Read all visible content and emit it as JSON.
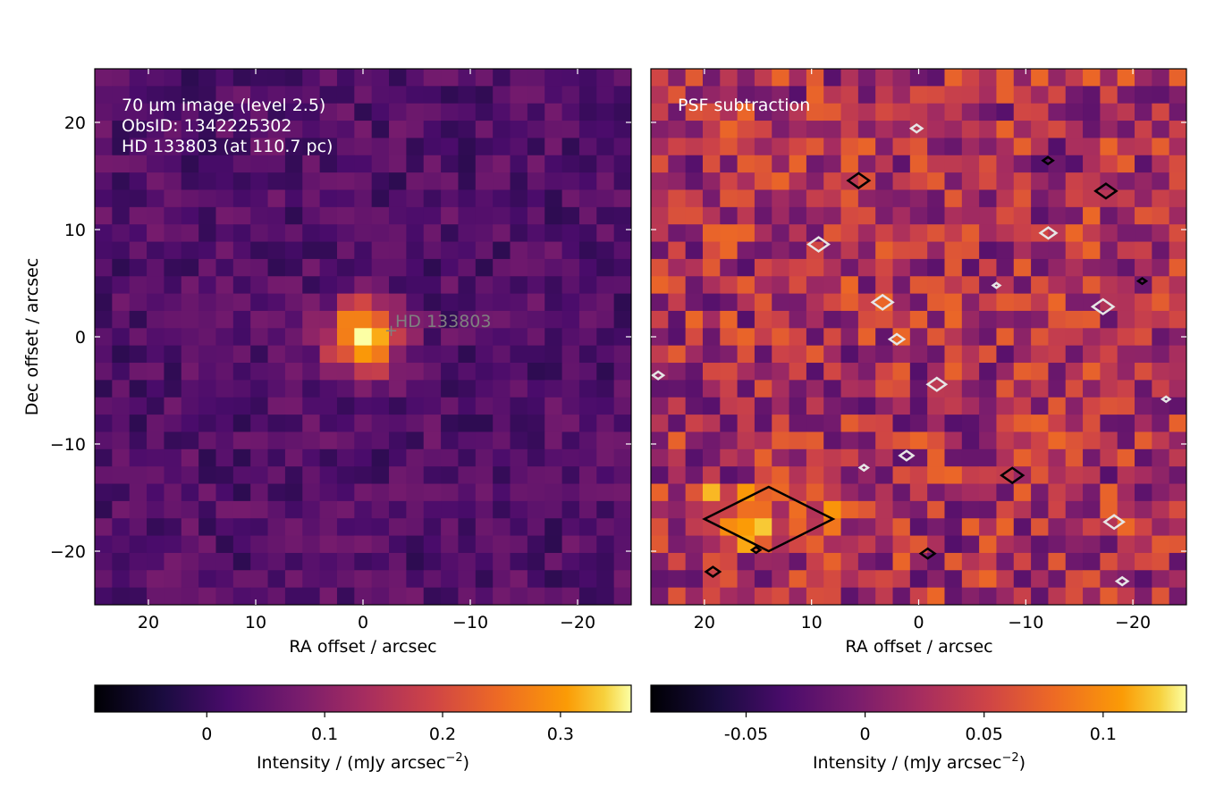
{
  "chart_data": [
    {
      "type": "heatmap",
      "panel": "left",
      "annotation_lines": [
        "70 µm image (level 2.5)",
        "ObsID: 1342225302",
        "HD 133803 (at 110.7 pc)"
      ],
      "source_label": "HD 133803",
      "source_position": [
        0,
        0
      ],
      "xlabel": "RA offset / arcsec",
      "ylabel": "Dec offset / arcsec",
      "xlim": [
        25,
        -25
      ],
      "ylim": [
        -25,
        25
      ],
      "xticks": [
        20,
        10,
        0,
        -10,
        -20
      ],
      "xtick_labels": [
        "20",
        "10",
        "0",
        "−10",
        "−20"
      ],
      "yticks": [
        20,
        10,
        0,
        -10,
        -20
      ],
      "ytick_labels": [
        "20",
        "10",
        "0",
        "−10",
        "−20"
      ],
      "pixel_size_arcsec": 1.6,
      "grid_shape": [
        31,
        31
      ],
      "colormap": "inferno",
      "source_peak": {
        "ra": 0,
        "dec": 0,
        "value": 0.36
      },
      "colorbar": {
        "label": "Intensity / (mJy arcsec",
        "label_exponent": "−2",
        "label_close": ")",
        "vmin": -0.095,
        "vmax": 0.36,
        "ticks": [
          0,
          0.1,
          0.2,
          0.3
        ],
        "tick_labels": [
          "0",
          "0.1",
          "0.2",
          "0.3"
        ]
      }
    },
    {
      "type": "heatmap",
      "panel": "right",
      "annotation_lines": [
        "PSF subtraction"
      ],
      "xlabel": "RA offset / arcsec",
      "xlim": [
        25,
        -25
      ],
      "ylim": [
        -25,
        25
      ],
      "xticks": [
        20,
        10,
        0,
        -10,
        -20
      ],
      "xtick_labels": [
        "20",
        "10",
        "0",
        "−10",
        "−20"
      ],
      "yticks": [
        20,
        10,
        0,
        -10,
        -20
      ],
      "pixel_size_arcsec": 1.6,
      "grid_shape": [
        31,
        31
      ],
      "colormap": "inferno",
      "contours": {
        "positive_color": "#000000",
        "negative_color": "#e6e6e6"
      },
      "residual_feature": {
        "ra_range": [
          8,
          20
        ],
        "dec_range": [
          -20,
          -14
        ]
      },
      "colorbar": {
        "label": "Intensity / (mJy arcsec",
        "label_exponent": "−2",
        "label_close": ")",
        "vmin": -0.09,
        "vmax": 0.135,
        "ticks": [
          -0.05,
          0,
          0.05,
          0.1
        ],
        "tick_labels": [
          "-0.05",
          "0",
          "0.05",
          "0.1"
        ]
      }
    }
  ]
}
